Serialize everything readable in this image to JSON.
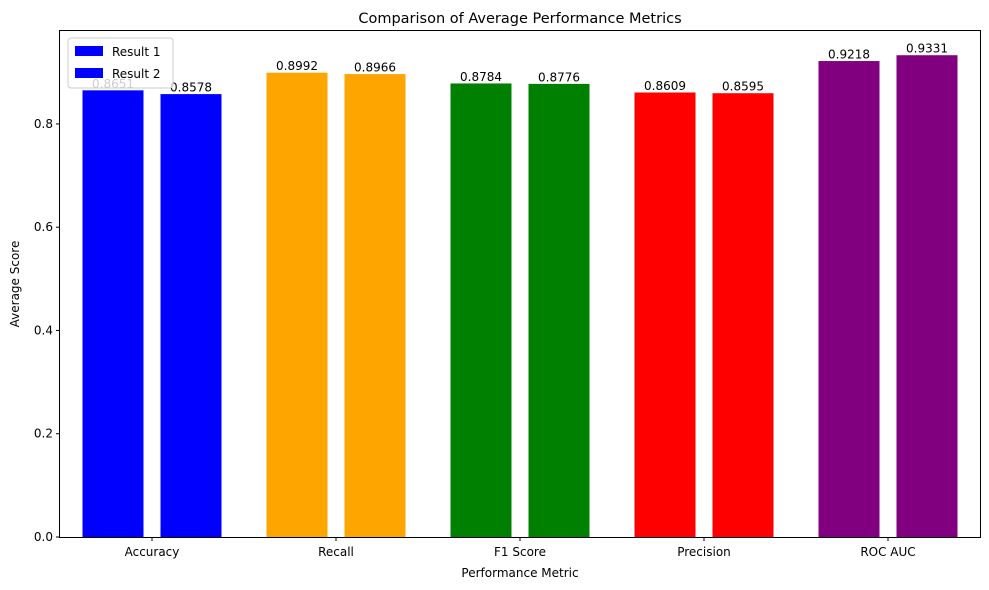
{
  "chart_data": {
    "type": "bar",
    "title": "Comparison of Average Performance Metrics",
    "xlabel": "Performance Metric",
    "ylabel": "Average Score",
    "categories": [
      "Accuracy",
      "Recall",
      "F1 Score",
      "Precision",
      "ROC AUC"
    ],
    "series": [
      {
        "name": "Result 1",
        "values": [
          0.8651,
          0.8992,
          0.8784,
          0.8609,
          0.9218
        ],
        "data_labels": [
          "0.8651",
          "0.8992",
          "0.8784",
          "0.8609",
          "0.9218"
        ]
      },
      {
        "name": "Result 2",
        "values": [
          0.8578,
          0.8966,
          0.8776,
          0.8595,
          0.9331
        ],
        "data_labels": [
          "0.8578",
          "0.8966",
          "0.8776",
          "0.8595",
          "0.9331"
        ]
      }
    ],
    "category_colors": [
      "#0000ff",
      "#ffa500",
      "#008000",
      "#ff0000",
      "#800080"
    ],
    "ylim": [
      0,
      0.98
    ],
    "yticks": [
      0.0,
      0.2,
      0.4,
      0.6,
      0.8
    ],
    "ytick_labels": [
      "0.0",
      "0.2",
      "0.4",
      "0.6",
      "0.8"
    ],
    "grid": false,
    "legend": {
      "placement": "top-left",
      "entries": [
        {
          "label": "Result 1",
          "color": "#0000ff"
        },
        {
          "label": "Result 2",
          "color": "#0000ff"
        }
      ]
    }
  }
}
